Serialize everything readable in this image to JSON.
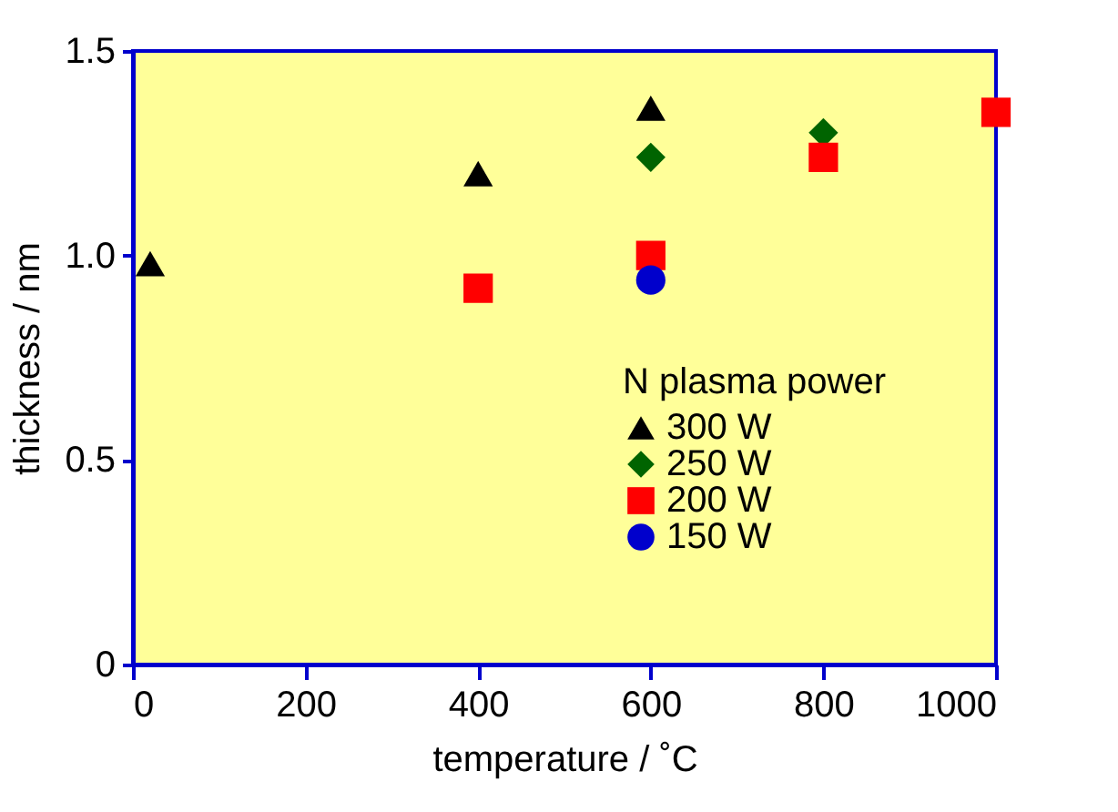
{
  "chart_data": {
    "type": "scatter",
    "xlabel": "temperature / ˚C",
    "ylabel": "thickness / nm",
    "legend_title": "N plasma power",
    "xlim": [
      0,
      1000
    ],
    "ylim": [
      0,
      1.5
    ],
    "xticks": [
      0,
      200,
      400,
      600,
      800,
      1000
    ],
    "yticks": [
      0,
      {
        "value": 0.5,
        "label": "0.5"
      },
      {
        "value": 1,
        "label": "1.0"
      },
      {
        "value": 1.5,
        "label": "1.5"
      }
    ],
    "grid": false,
    "legend": "bottom right",
    "series": [
      {
        "name": "300 W",
        "color": "#000000",
        "marker": "triangle",
        "x": [
          20,
          400,
          600
        ],
        "values": [
          0.98,
          1.2,
          1.36
        ]
      },
      {
        "name": "250 W",
        "color": "#006400",
        "marker": "diamond",
        "x": [
          600,
          800
        ],
        "values": [
          1.24,
          1.3
        ]
      },
      {
        "name": "200 W",
        "color": "#ff0000",
        "marker": "square",
        "x": [
          400,
          600,
          800,
          1000
        ],
        "values": [
          0.92,
          1.0,
          1.24,
          1.35
        ]
      },
      {
        "name": "150 W",
        "color": "#0000cc",
        "marker": "circle",
        "x": [
          600
        ],
        "values": [
          0.94
        ]
      }
    ]
  }
}
